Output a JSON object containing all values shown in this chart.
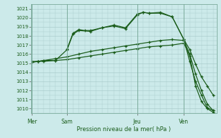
{
  "background_color": "#cceaea",
  "grid_color": "#aacccc",
  "line_color": "#1a5c1a",
  "title": "Pression niveau de la mer( hPa )",
  "ylim": [
    1009.5,
    1021.5
  ],
  "yticks": [
    1010,
    1011,
    1012,
    1013,
    1014,
    1015,
    1016,
    1017,
    1018,
    1019,
    1020,
    1021
  ],
  "day_labels": [
    "Mer",
    "Sam",
    "Jeu",
    "Ven"
  ],
  "day_positions": [
    0,
    3,
    9,
    13
  ],
  "xlim": [
    -0.1,
    15.8
  ],
  "series1": {
    "x": [
      0,
      0.5,
      1,
      2,
      3,
      3.5,
      4,
      5,
      6,
      7,
      8,
      9,
      9.5,
      10,
      11,
      12,
      13,
      13.5,
      14,
      14.5,
      15,
      15.5
    ],
    "y": [
      1015.2,
      1015.2,
      1015.3,
      1015.3,
      1016.5,
      1018.2,
      1018.6,
      1018.5,
      1018.9,
      1019.1,
      1018.8,
      1020.3,
      1020.6,
      1020.5,
      1020.5,
      1020.1,
      1017.6,
      1016.5,
      1014.9,
      1013.5,
      1012.5,
      1011.5
    ]
  },
  "series2": {
    "x": [
      3,
      3.5,
      4,
      4.5,
      5,
      6,
      7,
      8,
      9,
      9.5,
      10,
      11,
      12,
      13,
      13.5,
      14,
      14.5,
      15,
      15.5
    ],
    "y": [
      1016.6,
      1018.3,
      1018.7,
      1018.6,
      1018.6,
      1018.9,
      1019.2,
      1018.9,
      1020.4,
      1020.6,
      1020.5,
      1020.6,
      1020.1,
      1017.6,
      1015.2,
      1013.0,
      1011.5,
      1010.1,
      1009.8
    ]
  },
  "series3": {
    "x": [
      0,
      0.5,
      1,
      2,
      3,
      4,
      5,
      6,
      7,
      8,
      9,
      10,
      11,
      12,
      13,
      13.5,
      14,
      14.5,
      15,
      15.5
    ],
    "y": [
      1015.1,
      1015.2,
      1015.3,
      1015.5,
      1015.7,
      1016.0,
      1016.3,
      1016.5,
      1016.7,
      1016.9,
      1017.1,
      1017.3,
      1017.5,
      1017.6,
      1017.5,
      1016.0,
      1013.8,
      1012.0,
      1010.5,
      1009.8
    ]
  },
  "series4": {
    "x": [
      0,
      0.5,
      1,
      2,
      3,
      4,
      5,
      6,
      7,
      8,
      9,
      10,
      11,
      12,
      13,
      13.5,
      14,
      14.5,
      15,
      15.5
    ],
    "y": [
      1015.1,
      1015.2,
      1015.2,
      1015.3,
      1015.4,
      1015.6,
      1015.8,
      1016.0,
      1016.2,
      1016.4,
      1016.6,
      1016.8,
      1016.9,
      1017.0,
      1017.2,
      1015.8,
      1012.5,
      1010.8,
      1010.0,
      1009.6
    ]
  }
}
